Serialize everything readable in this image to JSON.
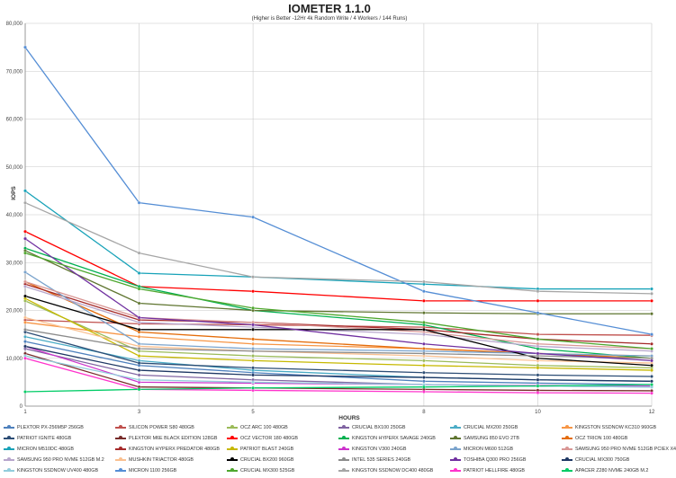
{
  "chart_data": {
    "type": "line",
    "title": "IOMETER 1.1.0",
    "subtitle": "(Higher is Better -12Hr 4k Random Write / 4 Workers / 144 Runs)",
    "xlabel": "HOURS",
    "ylabel": "IOPS",
    "x": [
      1,
      3,
      5,
      8,
      10,
      12
    ],
    "ylim": [
      0,
      80000
    ],
    "yticks": [
      "0",
      "10,000",
      "20,000",
      "30,000",
      "40,000",
      "50,000",
      "60,000",
      "70,000",
      "80,000"
    ],
    "grid": true,
    "legend_position": "bottom",
    "series": [
      {
        "name": "PLEXTOR PX-256M5P 256GB",
        "color": "#4f81bd",
        "values": [
          13500,
          8500,
          7000,
          5200,
          4800,
          4500
        ]
      },
      {
        "name": "SILICON POWER S80 480GB",
        "color": "#c0504d",
        "values": [
          18000,
          17200,
          17000,
          16500,
          15000,
          14800
        ]
      },
      {
        "name": "OCZ ARC 100 480GB",
        "color": "#9bbb59",
        "values": [
          22000,
          11500,
          10500,
          9500,
          8500,
          8000
        ]
      },
      {
        "name": "CRUCIAL BX100 250GB",
        "color": "#8064a2",
        "values": [
          12000,
          6500,
          5500,
          4500,
          4200,
          4000
        ]
      },
      {
        "name": "CRUCIAL MX200 250GB",
        "color": "#4bacc6",
        "values": [
          14500,
          9500,
          7500,
          6000,
          5500,
          5200
        ]
      },
      {
        "name": "KINGSTON SSDNOW KC310 960GB",
        "color": "#f79646",
        "values": [
          17500,
          14500,
          13000,
          12000,
          11000,
          10500
        ]
      },
      {
        "name": "PATRIOT IGNITE 480GB",
        "color": "#2c4d75",
        "values": [
          15500,
          9000,
          8000,
          7000,
          6500,
          6200
        ]
      },
      {
        "name": "PLEXTOR M6E BLACK EDITION 128GB",
        "color": "#772c2a",
        "values": [
          11000,
          4000,
          3800,
          3500,
          3300,
          3200
        ]
      },
      {
        "name": "OCZ VECTOR 180 480GB",
        "color": "#ff0000",
        "values": [
          36500,
          25000,
          24000,
          22000,
          22000,
          22000
        ]
      },
      {
        "name": "KINGSTON HYPERX SAVAGE 240GB",
        "color": "#00b050",
        "values": [
          33000,
          25000,
          20000,
          17000,
          12000,
          10000
        ]
      },
      {
        "name": "SAMSUNG 850 EVO 2TB",
        "color": "#5f7530",
        "values": [
          32500,
          21500,
          20000,
          19500,
          19300,
          19300
        ]
      },
      {
        "name": "OCZ TRION 100 480GB",
        "color": "#e46c0a",
        "values": [
          26000,
          15500,
          14000,
          12000,
          11000,
          10000
        ]
      },
      {
        "name": "MICRON M510DC 480GB",
        "color": "#17a2b8",
        "values": [
          45000,
          27800,
          27000,
          25500,
          24500,
          24500
        ]
      },
      {
        "name": "KINGSTON HYPERX PREDATOR 480GB",
        "color": "#a52a2a",
        "values": [
          25500,
          18000,
          17500,
          16000,
          14000,
          13000
        ]
      },
      {
        "name": "PATRIOT BLAST 240GB",
        "color": "#c6b800",
        "values": [
          22500,
          10500,
          9500,
          8500,
          8000,
          7500
        ]
      },
      {
        "name": "KINGSTON V300 240GB",
        "color": "#cc33cc",
        "values": [
          12500,
          5000,
          4800,
          4500,
          4300,
          4200
        ]
      },
      {
        "name": "MICRON M600 512GB",
        "color": "#7aa3cc",
        "values": [
          28000,
          13000,
          12000,
          11500,
          11000,
          10500
        ]
      },
      {
        "name": "SAMSUNG 950 PRO NVME 512GB PCIEX X4",
        "color": "#d99694",
        "values": [
          26000,
          18500,
          17500,
          15500,
          13000,
          12000
        ]
      },
      {
        "name": "SAMSUNG 950 PRO NVME 512GB M.2",
        "color": "#b7a6cc",
        "values": [
          25000,
          17500,
          16500,
          15000,
          12500,
          11500
        ]
      },
      {
        "name": "MUSHKIN TRIACTOR 480GB",
        "color": "#fac090",
        "values": [
          18500,
          12500,
          11500,
          10500,
          9500,
          9000
        ]
      },
      {
        "name": "CRUCIAL BX200 960GB",
        "color": "#000000",
        "values": [
          23000,
          16000,
          16000,
          16000,
          10000,
          8500
        ]
      },
      {
        "name": "INTEL 535 SERIES 240GB",
        "color": "#8c8c8c",
        "values": [
          16000,
          12000,
          11500,
          11000,
          10500,
          10000
        ]
      },
      {
        "name": "TOSHIBA Q300 PRO 256GB",
        "color": "#7030a0",
        "values": [
          35000,
          18500,
          17000,
          13000,
          11000,
          9500
        ]
      },
      {
        "name": "CRUCIAL MX300 750GB",
        "color": "#1f3864",
        "values": [
          12500,
          7500,
          6500,
          6000,
          5500,
          5200
        ]
      },
      {
        "name": "KINGSTON SSDNOW UV400 480GB",
        "color": "#92cddc",
        "values": [
          10500,
          5500,
          5000,
          4500,
          4200,
          4000
        ]
      },
      {
        "name": "MICRON 1100 256GB",
        "color": "#558ed5",
        "values": [
          75000,
          42500,
          39500,
          24000,
          19500,
          15000
        ]
      },
      {
        "name": "CRUCIAL MX300 525GB",
        "color": "#4ea72e",
        "values": [
          32000,
          24500,
          20500,
          17500,
          14000,
          12000
        ]
      },
      {
        "name": "KINGSTON SSDNOW DC400 480GB",
        "color": "#a6a6a6",
        "values": [
          42500,
          32000,
          27000,
          26000,
          24000,
          23500
        ]
      },
      {
        "name": "PATRIOT HELLFIRE 480GB",
        "color": "#ff33cc",
        "values": [
          10000,
          3500,
          3300,
          3000,
          2800,
          2700
        ]
      },
      {
        "name": "APACER Z280 NVME 240GB M.2",
        "color": "#00cc66",
        "values": [
          3000,
          3500,
          3800,
          4000,
          4200,
          4500
        ]
      }
    ]
  }
}
